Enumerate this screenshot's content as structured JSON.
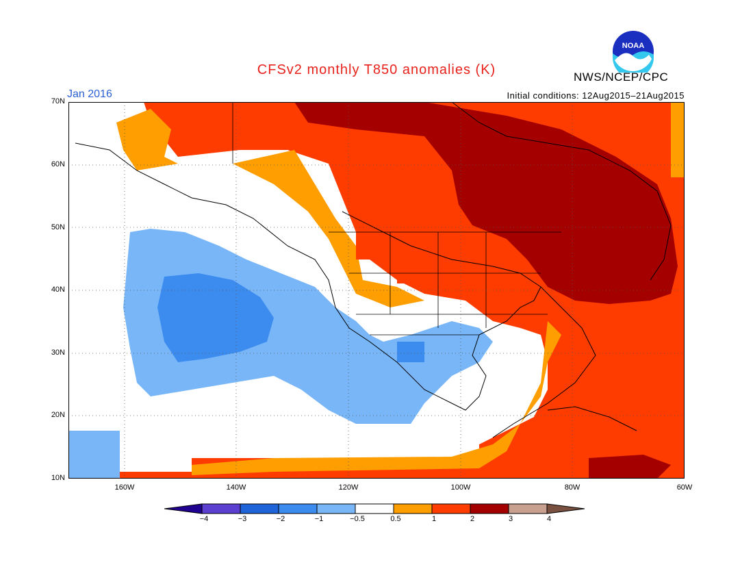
{
  "title": "CFSv2 monthly T850 anomalies (K)",
  "period": "Jan 2016",
  "initial_conditions": "Initial conditions: 12Aug2015–21Aug2015",
  "agency": "NWS/NCEP/CPC",
  "logo_text": "NOAA",
  "axes": {
    "lat_labels": [
      "70N",
      "60N",
      "50N",
      "40N",
      "30N",
      "20N",
      "10N"
    ],
    "lon_labels": [
      "160W",
      "140W",
      "120W",
      "100W",
      "80W",
      "60W"
    ]
  },
  "colorbar": {
    "labels": [
      "−4",
      "−3",
      "−2",
      "−1",
      "−0.5",
      "0.5",
      "1",
      "2",
      "3",
      "4"
    ],
    "colors": [
      "#1f0090",
      "#5a3fd0",
      "#1f64d8",
      "#3c8cf0",
      "#78b6f8",
      "#ffffff",
      "#ff9e00",
      "#ff3c00",
      "#a50000",
      "#c8a090",
      "#7a5040"
    ]
  }
}
